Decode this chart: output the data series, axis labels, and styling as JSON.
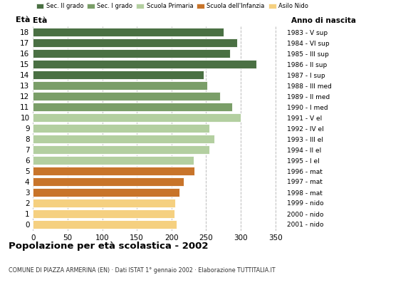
{
  "ages": [
    18,
    17,
    16,
    15,
    14,
    13,
    12,
    11,
    10,
    9,
    8,
    7,
    6,
    5,
    4,
    3,
    2,
    1,
    0
  ],
  "values": [
    275,
    295,
    285,
    323,
    247,
    252,
    270,
    288,
    300,
    255,
    262,
    255,
    232,
    233,
    218,
    212,
    205,
    204,
    207
  ],
  "right_labels": [
    "1983 - V sup",
    "1984 - VI sup",
    "1985 - III sup",
    "1986 - II sup",
    "1987 - I sup",
    "1988 - III med",
    "1989 - II med",
    "1990 - I med",
    "1991 - V el",
    "1992 - IV el",
    "1993 - III el",
    "1994 - II el",
    "1995 - I el",
    "1996 - mat",
    "1997 - mat",
    "1998 - mat",
    "1999 - nido",
    "2000 - nido",
    "2001 - nido"
  ],
  "bar_colors": [
    "#4a7043",
    "#4a7043",
    "#4a7043",
    "#4a7043",
    "#4a7043",
    "#7a9e68",
    "#7a9e68",
    "#7a9e68",
    "#b3cfa0",
    "#b3cfa0",
    "#b3cfa0",
    "#b3cfa0",
    "#b3cfa0",
    "#c8742a",
    "#c8742a",
    "#c8742a",
    "#f5d080",
    "#f5d080",
    "#f5d080"
  ],
  "legend_labels": [
    "Sec. II grado",
    "Sec. I grado",
    "Scuola Primaria",
    "Scuola dell'Infanzia",
    "Asilo Nido"
  ],
  "legend_colors": [
    "#4a7043",
    "#7a9e68",
    "#b3cfa0",
    "#c8742a",
    "#f5d080"
  ],
  "title": "Popolazione per età scolastica - 2002",
  "subtitle": "COMUNE DI PIAZZA ARMERINA (EN) · Dati ISTAT 1° gennaio 2002 · Elaborazione TUTTITALIA.IT",
  "xlabel_eta": "Età",
  "xlabel_anno": "Anno di nascita",
  "xlim": [
    0,
    370
  ],
  "xticks": [
    0,
    50,
    100,
    150,
    200,
    250,
    300,
    350
  ],
  "bg_color": "#ffffff",
  "grid_color": "#bbbbbb"
}
